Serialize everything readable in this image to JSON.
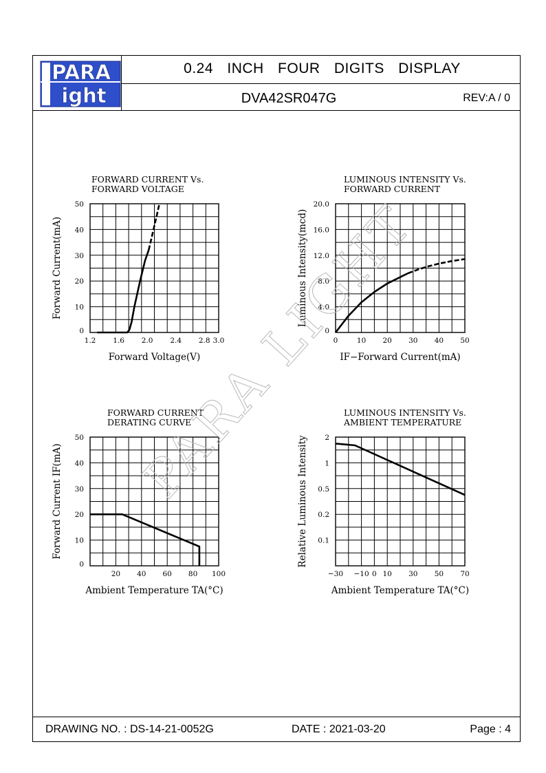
{
  "header": {
    "logo_top": "PARA",
    "logo_bottom": "ight",
    "title": "0.24 INCH FOUR DIGITS DISPLAY",
    "model": "DVA42SR047G",
    "revision": "REV:A / 0"
  },
  "footer": {
    "drawing_no": "DRAWING NO. : DS-14-21-0052G",
    "date": "DATE : 2021-03-20",
    "page": "Page : 4"
  },
  "watermark": "PARA LIGHT",
  "chart_data": [
    {
      "id": "fwd-current-voltage",
      "type": "line",
      "title": [
        "FORWARD CURRENT Vs.",
        "FORWARD VOLTAGE"
      ],
      "xlabel": "Forward Voltage(V)",
      "ylabel": "Forward Current(mA)",
      "xlim": [
        1.2,
        3.0
      ],
      "ylim": [
        0,
        50
      ],
      "xticks": [
        1.2,
        1.6,
        2.0,
        2.4,
        2.8,
        3.0
      ],
      "xtick_labels": [
        "1.2",
        "1.6",
        "2.0",
        "2.4",
        "2.8",
        "3.0"
      ],
      "yticks": [
        0,
        10,
        20,
        30,
        40,
        50
      ],
      "ytick_labels": [
        "0",
        "10",
        "20",
        "30",
        "40",
        "50"
      ],
      "grid_x": 10,
      "grid_y": 10,
      "series": [
        {
          "style": "solid",
          "x": [
            1.3,
            1.72,
            1.75,
            1.78,
            1.82,
            1.9,
            1.97,
            2.02
          ],
          "y": [
            0,
            0,
            1,
            4,
            10,
            20,
            28,
            32
          ]
        },
        {
          "style": "dashed",
          "x": [
            2.02,
            2.08,
            2.13,
            2.17
          ],
          "y": [
            32,
            39,
            45,
            50
          ]
        }
      ]
    },
    {
      "id": "lum-intensity-current",
      "type": "line",
      "title": [
        "LUMINOUS INTENSITY Vs.",
        "FORWARD CURRENT"
      ],
      "xlabel": "IF−Forward Current(mA)",
      "ylabel": "Luminous Intensity(mcd)",
      "xlim": [
        0,
        50
      ],
      "ylim": [
        0,
        20
      ],
      "xticks": [
        0,
        10,
        20,
        30,
        40,
        50
      ],
      "xtick_labels": [
        "0",
        "10",
        "20",
        "30",
        "40",
        "50"
      ],
      "yticks": [
        0,
        4,
        8,
        12,
        16,
        20
      ],
      "ytick_labels": [
        "0",
        "4.0",
        "8.0",
        "12.0",
        "16.0",
        "20.0"
      ],
      "grid_x": 10,
      "grid_y": 10,
      "series": [
        {
          "style": "solid",
          "x": [
            0,
            5,
            10,
            15,
            20,
            25,
            28
          ],
          "y": [
            0,
            2.6,
            4.7,
            6.3,
            7.6,
            8.6,
            9.2
          ]
        },
        {
          "style": "dashed",
          "x": [
            28,
            32,
            36,
            40,
            45,
            50
          ],
          "y": [
            9.2,
            9.8,
            10.3,
            10.7,
            11.1,
            11.4
          ]
        }
      ]
    },
    {
      "id": "derating-curve",
      "type": "line",
      "title": [
        "FORWARD CURRENT",
        "DERATING CURVE"
      ],
      "xlabel": "Ambient Temperature TA(°C)",
      "ylabel": "Forward Current IF(mA)",
      "xlim": [
        0,
        100
      ],
      "ylim": [
        0,
        50
      ],
      "xticks": [
        20,
        40,
        60,
        80,
        100
      ],
      "xtick_labels": [
        "20",
        "40",
        "60",
        "80",
        "100"
      ],
      "yticks": [
        0,
        10,
        20,
        30,
        40,
        50
      ],
      "ytick_labels": [
        "0",
        "10",
        "20",
        "30",
        "40",
        "50"
      ],
      "grid_x": 10,
      "grid_y": 10,
      "series": [
        {
          "style": "solid",
          "x": [
            0,
            25,
            85,
            85
          ],
          "y": [
            20,
            20,
            7.5,
            0
          ]
        }
      ]
    },
    {
      "id": "lum-intensity-temperature",
      "type": "line",
      "title": [
        "LUMINOUS INTENSITY Vs.",
        "AMBIENT TEMPERATURE"
      ],
      "xlabel": "Ambient Temperature TA(°C)",
      "ylabel": "Relative Luminous Intensity",
      "xlim": [
        -30,
        70
      ],
      "ylim": [
        0,
        5
      ],
      "xticks": [
        -30,
        -10,
        0,
        10,
        30,
        50,
        70
      ],
      "xtick_labels": [
        "−30",
        "−10",
        "0",
        "10",
        "30",
        "50",
        "70"
      ],
      "yticks": [
        1,
        2,
        3,
        4,
        5
      ],
      "ytick_labels": [
        "0.1",
        "0.2",
        "0.5",
        "1",
        "2"
      ],
      "grid_x": 10,
      "grid_y": 10,
      "series": [
        {
          "style": "solid",
          "x": [
            -30,
            -15,
            70
          ],
          "y": [
            4.75,
            4.68,
            2.75
          ]
        }
      ]
    }
  ]
}
